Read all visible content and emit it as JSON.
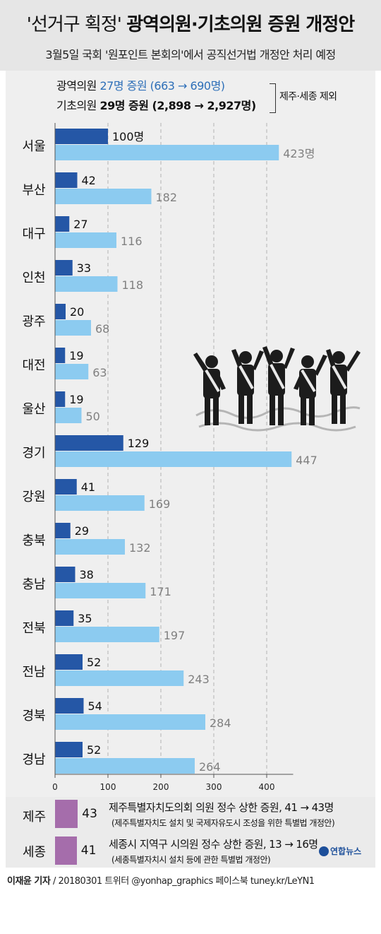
{
  "header": {
    "title_tag": "'선거구 획정'",
    "title_main": "광역의원·기초의원 증원 개정안",
    "subtitle": "3월5일 국회 '원포인트 본회의'에서 공직선거법 개정안 처리 예정"
  },
  "summary": {
    "provincial_label": "광역의원",
    "provincial_value": "27명 증원 (663 → 690명)",
    "basic_label": "기초의원",
    "basic_value": "29명 증원 (2,898 → 2,927명)",
    "note": "제주·세종 제외"
  },
  "chart_data": {
    "type": "bar",
    "orientation": "horizontal",
    "categories": [
      "서울",
      "부산",
      "대구",
      "인천",
      "광주",
      "대전",
      "울산",
      "경기",
      "강원",
      "충북",
      "충남",
      "전북",
      "전남",
      "경북",
      "경남"
    ],
    "series": [
      {
        "values": [
          100,
          42,
          27,
          33,
          20,
          19,
          19,
          129,
          41,
          29,
          38,
          35,
          52,
          54,
          52
        ],
        "color": "#2557a6"
      },
      {
        "values": [
          423,
          182,
          116,
          118,
          68,
          63,
          50,
          447,
          169,
          132,
          171,
          197,
          243,
          284,
          264
        ],
        "color": "#8ccbf0"
      }
    ],
    "data_labels_first": [
      "100명",
      "42",
      "27",
      "33",
      "20",
      "19",
      "19",
      "129",
      "41",
      "29",
      "38",
      "35",
      "52",
      "54",
      "52"
    ],
    "data_labels_second": [
      "423명",
      "182",
      "116",
      "118",
      "68",
      "63",
      "50",
      "447",
      "169",
      "132",
      "171",
      "197",
      "243",
      "284",
      "264"
    ],
    "x_ticks": [
      0,
      100,
      200,
      300,
      400
    ],
    "xlim": [
      0,
      450
    ],
    "grid": "vertical dashed",
    "label_color_second": "#808080"
  },
  "islands": [
    {
      "name": "제주",
      "value": 43,
      "color": "#a56dab",
      "desc": "제주특별자치도의회 의원 정수 상한 증원, 41 → 43명",
      "sub": "(제주특별자치도 설치 및 국제자유도시 조성을 위한 특별법 개정안)"
    },
    {
      "name": "세종",
      "value": 41,
      "color": "#a56dab",
      "desc": "세종시 지역구 시의원 정수 상한 증원, 13 → 16명",
      "sub": "(세종특별자치시 설치 등에 관한 특별법 개정안)"
    }
  ],
  "logo": "연합뉴스",
  "footer": {
    "reporter": "이재윤 기자",
    "rest": " / 20180301   트위터 @yonhap_graphics  페이스북 tuney.kr/LeYN1"
  }
}
